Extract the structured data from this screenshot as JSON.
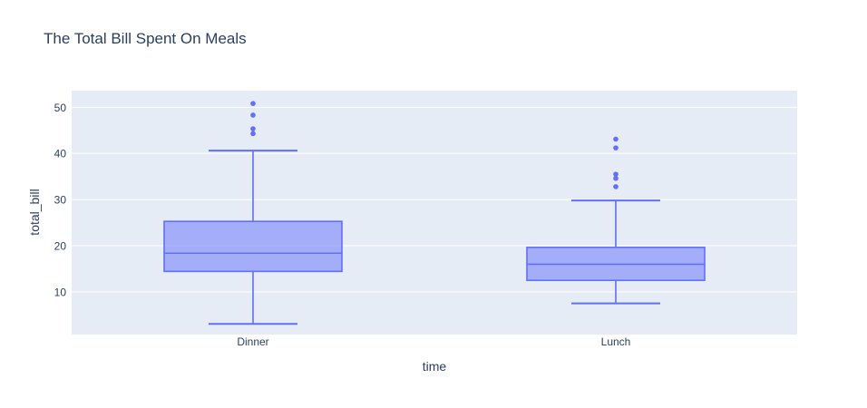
{
  "colors": {
    "box_line": "#636efa",
    "box_fill": "rgba(99,110,250,0.5)",
    "outlier": "#636efa",
    "plot_background": "#e5ecf6",
    "gridline": "#ffffff",
    "text": "#2a3f5f"
  },
  "chart_data": {
    "type": "box",
    "title": "The Total Bill Spent On Meals",
    "xlabel": "time",
    "ylabel": "total_bill",
    "categories": [
      "Dinner",
      "Lunch"
    ],
    "yticks": [
      10,
      20,
      30,
      40,
      50
    ],
    "ylim": [
      0.76,
      53.6
    ],
    "grid": true,
    "legend_visible": false,
    "series": [
      {
        "name": "Dinner",
        "lower_whisker": 3.07,
        "q1": 14.44,
        "median": 18.39,
        "q3": 25.28,
        "upper_whisker": 40.6,
        "outliers": [
          44.3,
          45.35,
          48.3,
          50.81
        ]
      },
      {
        "name": "Lunch",
        "lower_whisker": 7.51,
        "q1": 12.5,
        "median": 16.0,
        "q3": 19.65,
        "upper_whisker": 29.8,
        "outliers": [
          32.8,
          34.6,
          35.5,
          41.2,
          43.1
        ]
      }
    ]
  }
}
